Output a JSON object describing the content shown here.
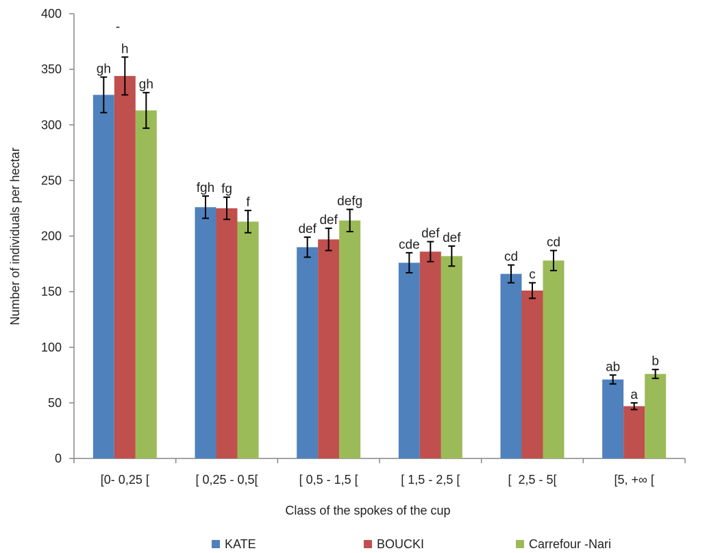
{
  "chart_data": {
    "type": "bar",
    "xlabel": "Class of the spokes of the cup",
    "ylabel": "Number of individuals per hectar",
    "ylim": [
      0,
      400
    ],
    "yticks": [
      0,
      50,
      100,
      150,
      200,
      250,
      300,
      350,
      400
    ],
    "categories": [
      "[0- 0,25 [",
      "[ 0,25 - 0,5[",
      "[ 0,5 - 1,5 [",
      "[ 1,5 - 2,5 [",
      "[  2,5 - 5[",
      "[5, +∞ ["
    ],
    "series": [
      {
        "name": "KATE",
        "color": "#4f81bd",
        "values": [
          327,
          226,
          190,
          176,
          166,
          71
        ],
        "errors": [
          16,
          10,
          9,
          9,
          8,
          4
        ],
        "labels": [
          "gh",
          "fgh",
          "def",
          "cde",
          "cd",
          "ab"
        ]
      },
      {
        "name": "BOUCKI",
        "color": "#c0504d",
        "values": [
          344,
          225,
          197,
          186,
          151,
          47
        ],
        "errors": [
          17,
          10,
          10,
          9,
          7,
          3
        ],
        "labels": [
          "h",
          "fg",
          "def",
          "def",
          "c",
          "a"
        ]
      },
      {
        "name": "Carrefour -Nari",
        "color": "#9bbb59",
        "values": [
          313,
          213,
          214,
          182,
          178,
          76
        ],
        "errors": [
          16,
          10,
          10,
          9,
          9,
          4
        ],
        "labels": [
          "gh",
          "f",
          "defg",
          "def",
          "cd",
          "b"
        ]
      }
    ],
    "extra_annotations": [
      "-"
    ],
    "grid": false,
    "legend_position": "bottom"
  }
}
